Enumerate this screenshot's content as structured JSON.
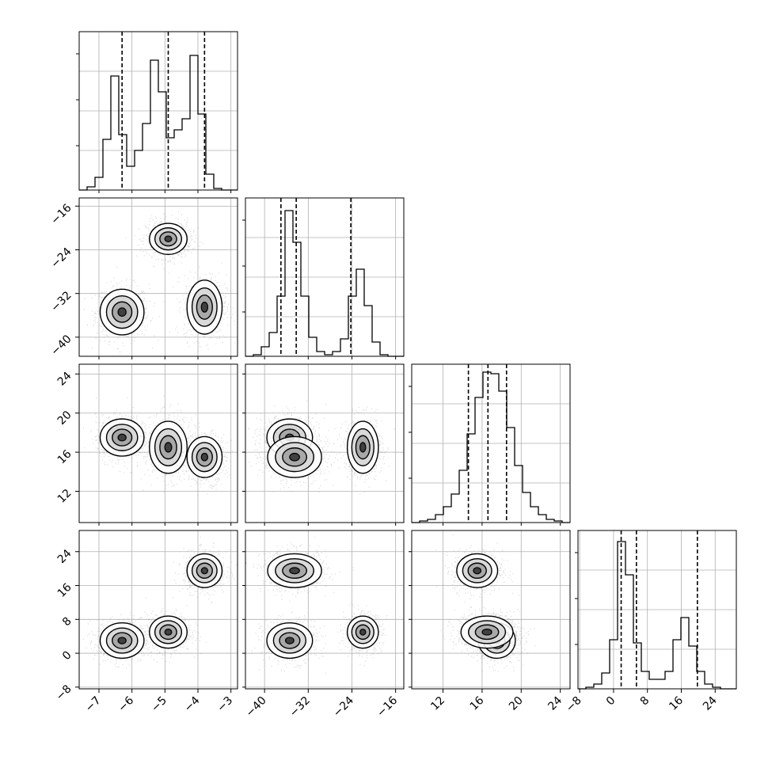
{
  "chart_data": {
    "type": "corner",
    "parameters": [
      "",
      "",
      "",
      ""
    ],
    "grid": true,
    "colors": {
      "line": "#000000",
      "grid": "#b0b0b0",
      "points": "#9a9a9a"
    },
    "ranges": [
      [
        -7.6,
        -2.8
      ],
      [
        -43.5,
        -14.5
      ],
      [
        8.8,
        25.0
      ],
      [
        -8.4,
        29.0
      ]
    ],
    "ticks": [
      {
        "values": [
          -7,
          -6,
          -5,
          -4,
          -3
        ],
        "labels": [
          "−7",
          "−6",
          "−5",
          "−4",
          "−3"
        ]
      },
      {
        "values": [
          -40,
          -32,
          -24,
          -16
        ],
        "labels": [
          "−40",
          "−32",
          "−24",
          "−16"
        ]
      },
      {
        "values": [
          12,
          16,
          20,
          24
        ],
        "labels": [
          "12",
          "16",
          "20",
          "24"
        ]
      },
      {
        "values": [
          -8,
          0,
          8,
          16,
          24
        ],
        "labels": [
          "−8",
          "0",
          "8",
          "16",
          "24"
        ]
      }
    ],
    "quantiles": [
      [
        -6.3,
        -4.9,
        -3.8
      ],
      [
        -37.0,
        -34.2,
        -24.2
      ],
      [
        14.6,
        16.6,
        18.5
      ],
      [
        1.8,
        5.4,
        19.8
      ]
    ],
    "histograms": [
      {
        "edges_start": -7.6,
        "bin_width": 0.24,
        "counts": [
          0,
          0.02,
          0.08,
          0.32,
          0.72,
          0.35,
          0.15,
          0.25,
          0.42,
          0.82,
          0.62,
          0.33,
          0.38,
          0.45,
          0.85,
          0.48,
          0.1,
          0.01,
          0,
          0
        ]
      },
      {
        "edges_start": -43.5,
        "bin_width": 1.45,
        "counts": [
          0,
          0.01,
          0.06,
          0.15,
          0.38,
          0.92,
          0.72,
          0.38,
          0.12,
          0.03,
          0.01,
          0.03,
          0.11,
          0.38,
          0.55,
          0.32,
          0.09,
          0.01,
          0,
          0
        ]
      },
      {
        "edges_start": 8.8,
        "bin_width": 0.81,
        "counts": [
          0,
          0.01,
          0.02,
          0.05,
          0.1,
          0.18,
          0.33,
          0.56,
          0.79,
          0.95,
          0.94,
          0.83,
          0.6,
          0.36,
          0.19,
          0.1,
          0.05,
          0.02,
          0.01,
          0
        ]
      },
      {
        "edges_start": -8.4,
        "bin_width": 1.87,
        "counts": [
          0,
          0.01,
          0.03,
          0.1,
          0.31,
          0.93,
          0.72,
          0.29,
          0.11,
          0.06,
          0.06,
          0.11,
          0.31,
          0.45,
          0.27,
          0.11,
          0.03,
          0.01,
          0,
          0
        ]
      }
    ],
    "clusters": [
      {
        "mean": [
          -6.3,
          -35.4,
          17.5,
          3.0
        ],
        "spread": [
          0.35,
          2.2,
          1.0,
          2.2
        ]
      },
      {
        "mean": [
          -4.9,
          -22.0,
          16.5,
          5.0
        ],
        "spread": [
          0.3,
          1.5,
          1.4,
          2.0
        ]
      },
      {
        "mean": [
          -3.8,
          -34.5,
          15.5,
          19.5
        ],
        "spread": [
          0.28,
          2.6,
          1.1,
          2.1
        ]
      }
    ]
  }
}
